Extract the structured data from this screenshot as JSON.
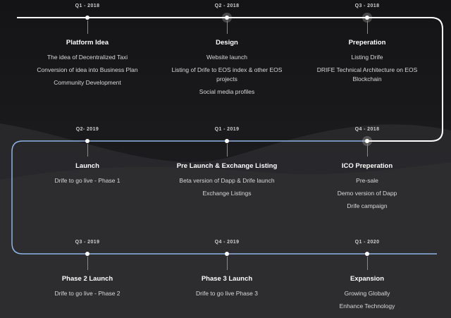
{
  "rows": [
    {
      "milestones": [
        {
          "quarter": "Q1 - 2018",
          "title": "Platform Idea",
          "items": [
            "The idea of Decentralized Taxi",
            "Conversion of idea into Business Plan",
            "Community Development"
          ]
        },
        {
          "quarter": "Q2 - 2018",
          "title": "Design",
          "items": [
            "Website launch",
            "Listing of Drife to EOS index & other EOS projects",
            "Social media profiles"
          ]
        },
        {
          "quarter": "Q3 - 2018",
          "title": "Preperation",
          "items": [
            "Listing Drife",
            "DRIFE Technical Architecture on EOS Blockchain"
          ]
        }
      ]
    },
    {
      "milestones": [
        {
          "quarter": "Q2- 2019",
          "title": "Launch",
          "items": [
            "Drife to go live - Phase 1"
          ]
        },
        {
          "quarter": "Q1 - 2019",
          "title": "Pre Launch & Exchange Listing",
          "items": [
            "Beta version of Dapp & Drife launch",
            "Exchange Listings"
          ]
        },
        {
          "quarter": "Q4 - 2018",
          "title": "ICO Preperation",
          "items": [
            "Pre-sale",
            "Demo version of Dapp",
            "Drife campaign"
          ]
        }
      ]
    },
    {
      "milestones": [
        {
          "quarter": "Q3 - 2019",
          "title": "Phase 2 Launch",
          "items": [
            "Drife to go live - Phase 2"
          ]
        },
        {
          "quarter": "Q4 - 2019",
          "title": "Phase 3 Launch",
          "items": [
            "Drife to go live Phase 3"
          ]
        },
        {
          "quarter": "Q1 - 2020",
          "title": "Expansion",
          "items": [
            "Growing Globally",
            "Enhance Technology"
          ]
        }
      ]
    }
  ],
  "colors": {
    "line_top": "#ffffff",
    "line_lower": "#8fb4e6",
    "background": "#1b1b1d"
  }
}
